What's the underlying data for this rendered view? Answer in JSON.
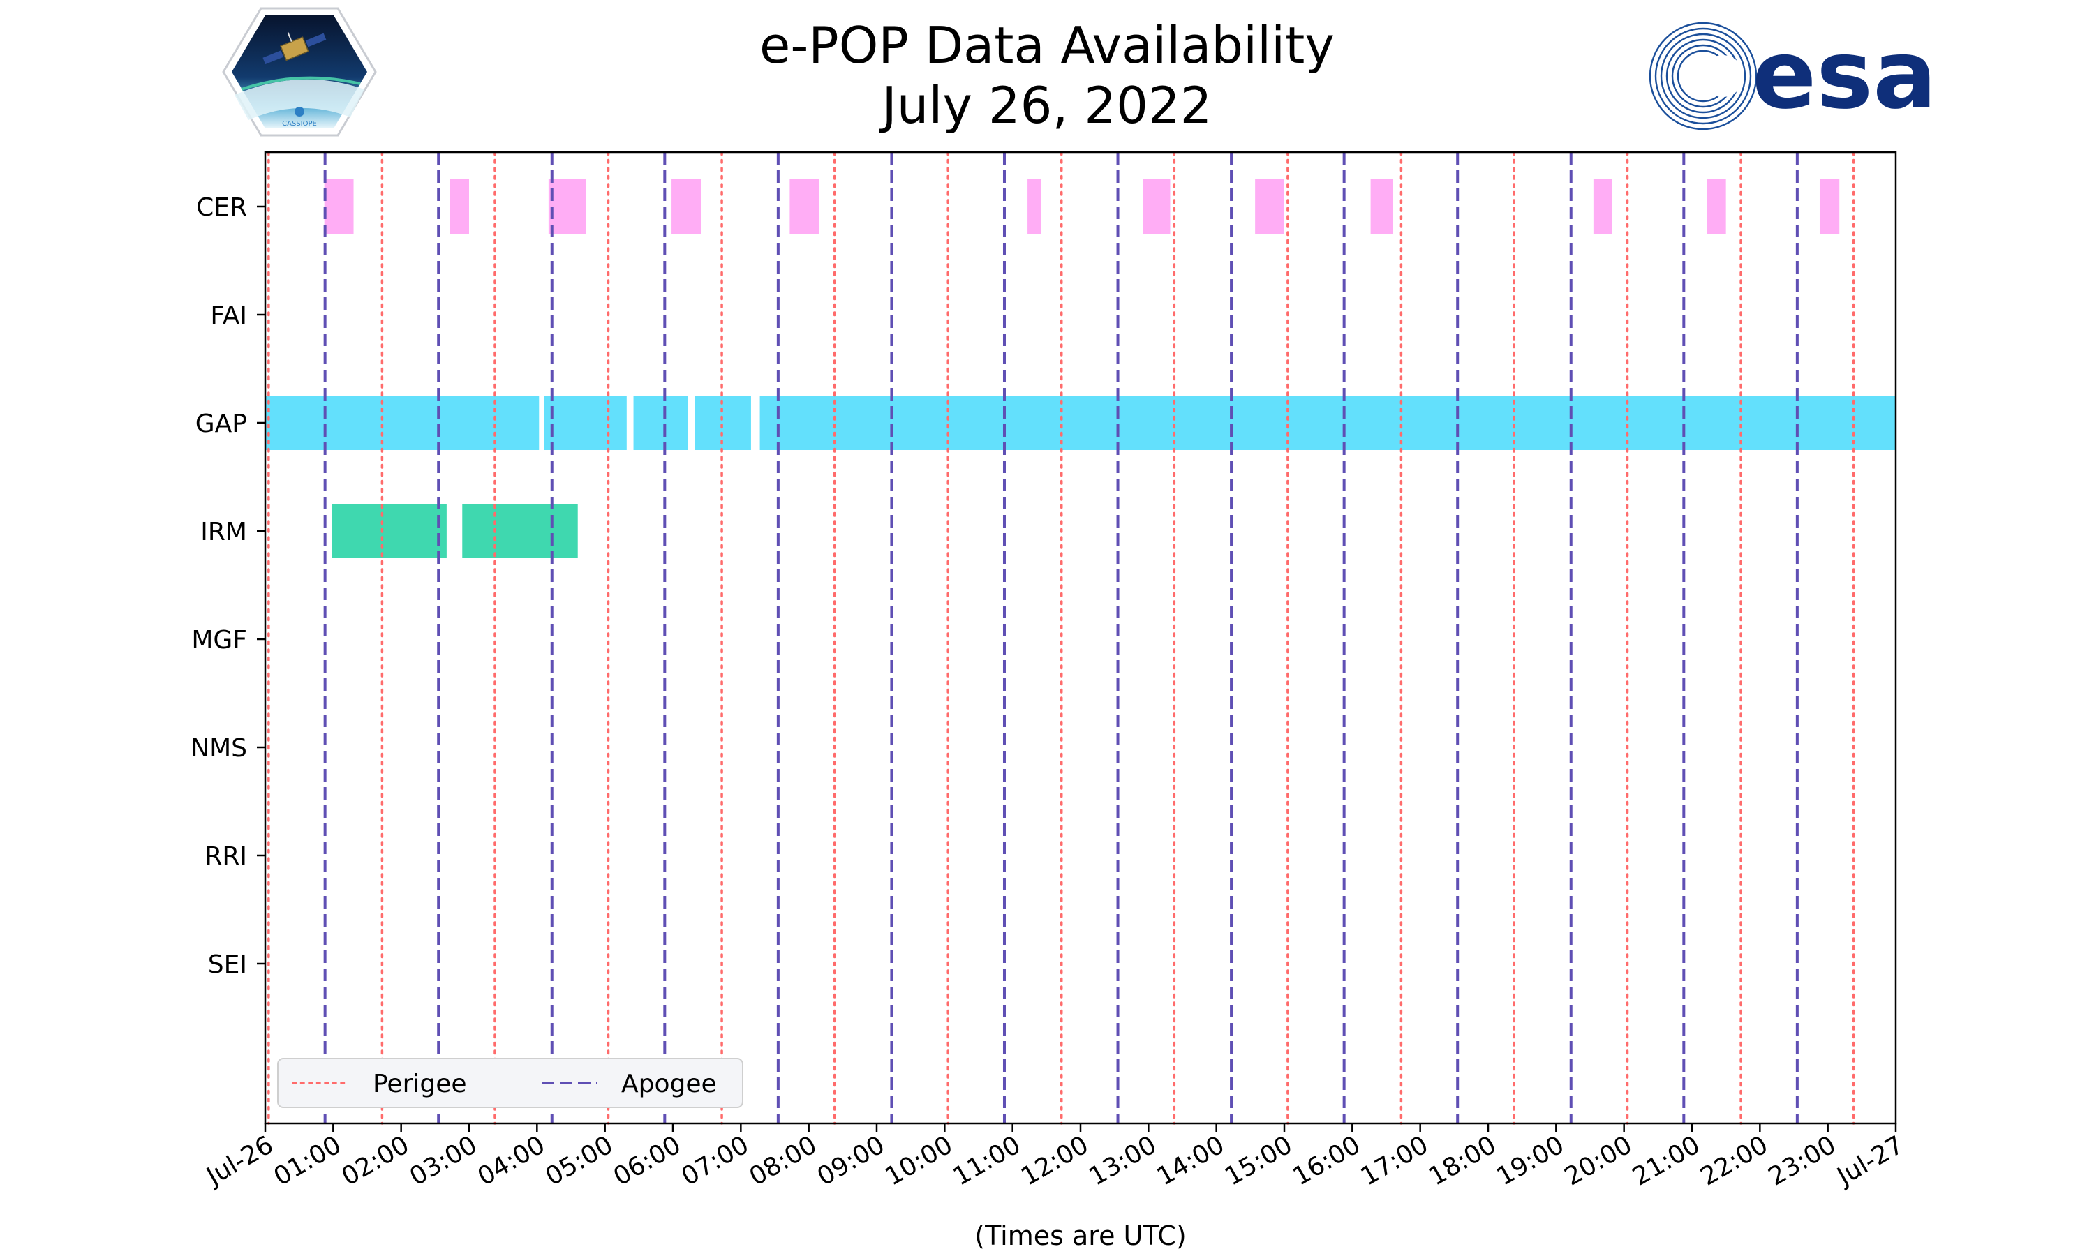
{
  "title_line1": "e-POP Data Availability",
  "title_line2": "July 26, 2022",
  "logos": {
    "left": "CASSIOPE",
    "right": "esa"
  },
  "chart_data": {
    "type": "timeline",
    "title": "e-POP Data Availability\nJuly 26, 2022",
    "xlabel": "(Times are UTC)",
    "x_range_hours": [
      0,
      24
    ],
    "xtick_labels": [
      "Jul-26",
      "01:00",
      "02:00",
      "03:00",
      "04:00",
      "05:00",
      "06:00",
      "07:00",
      "08:00",
      "09:00",
      "10:00",
      "11:00",
      "12:00",
      "13:00",
      "14:00",
      "15:00",
      "16:00",
      "17:00",
      "18:00",
      "19:00",
      "20:00",
      "21:00",
      "22:00",
      "23:00",
      "Jul-27"
    ],
    "instruments": [
      "CER",
      "FAI",
      "GAP",
      "IRM",
      "MGF",
      "NMS",
      "RRI",
      "SEI"
    ],
    "colors": {
      "CER": "#ff9ff3",
      "GAP": "#48dbfb",
      "IRM": "#1dd1a1",
      "perigee": "#ff6b6b",
      "apogee": "#5f4fb4"
    },
    "intervals": {
      "CER": [
        [
          0.87,
          1.3
        ],
        [
          2.72,
          3.0
        ],
        [
          4.17,
          4.72
        ],
        [
          5.98,
          6.42
        ],
        [
          7.72,
          8.15
        ],
        [
          11.22,
          11.42
        ],
        [
          12.92,
          13.32
        ],
        [
          14.57,
          15.0
        ],
        [
          16.27,
          16.6
        ],
        [
          19.55,
          19.82
        ],
        [
          21.22,
          21.5
        ],
        [
          22.88,
          23.17
        ]
      ],
      "FAI": [],
      "GAP": [
        [
          0.0,
          4.03
        ],
        [
          4.1,
          5.32
        ],
        [
          5.42,
          6.22
        ],
        [
          6.32,
          7.15
        ],
        [
          7.28,
          24.0
        ]
      ],
      "IRM": [
        [
          0.98,
          2.67
        ],
        [
          2.9,
          4.6
        ]
      ],
      "MGF": [],
      "NMS": [],
      "RRI": [],
      "SEI": []
    },
    "perigee_hours": [
      0.05,
      1.72,
      3.38,
      5.05,
      6.72,
      8.38,
      10.05,
      11.72,
      13.38,
      15.05,
      16.72,
      18.38,
      20.05,
      21.72,
      23.38
    ],
    "apogee_hours": [
      0.88,
      2.55,
      4.22,
      5.88,
      7.55,
      9.22,
      10.88,
      12.55,
      14.22,
      15.88,
      17.55,
      19.22,
      20.88,
      22.55
    ],
    "legend": [
      {
        "label": "Perigee",
        "style": "dotted"
      },
      {
        "label": "Apogee",
        "style": "dashed"
      }
    ],
    "legend_location": "lower-left"
  }
}
